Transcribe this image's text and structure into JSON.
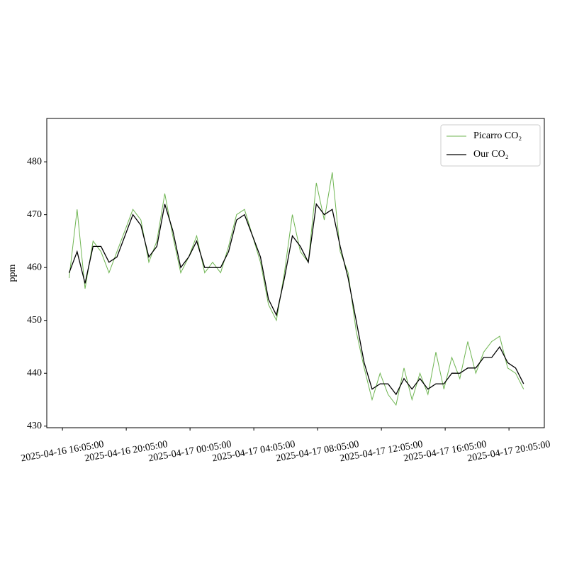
{
  "chart_data": {
    "type": "line",
    "y_label": "ppm",
    "x": [
      "2025-04-16 16:30:00",
      "2025-04-16 17:00:00",
      "2025-04-16 17:30:00",
      "2025-04-16 18:00:00",
      "2025-04-16 18:30:00",
      "2025-04-16 19:00:00",
      "2025-04-16 19:30:00",
      "2025-04-16 20:00:00",
      "2025-04-16 20:30:00",
      "2025-04-16 21:00:00",
      "2025-04-16 21:30:00",
      "2025-04-16 22:00:00",
      "2025-04-16 22:30:00",
      "2025-04-16 23:00:00",
      "2025-04-16 23:30:00",
      "2025-04-17 00:00:00",
      "2025-04-17 00:30:00",
      "2025-04-17 01:00:00",
      "2025-04-17 01:30:00",
      "2025-04-17 02:00:00",
      "2025-04-17 02:30:00",
      "2025-04-17 03:00:00",
      "2025-04-17 03:30:00",
      "2025-04-17 04:00:00",
      "2025-04-17 04:30:00",
      "2025-04-17 05:00:00",
      "2025-04-17 05:30:00",
      "2025-04-17 06:00:00",
      "2025-04-17 06:30:00",
      "2025-04-17 07:00:00",
      "2025-04-17 07:30:00",
      "2025-04-17 08:00:00",
      "2025-04-17 08:30:00",
      "2025-04-17 09:00:00",
      "2025-04-17 09:30:00",
      "2025-04-17 10:00:00",
      "2025-04-17 10:30:00",
      "2025-04-17 11:00:00",
      "2025-04-17 11:30:00",
      "2025-04-17 12:00:00",
      "2025-04-17 12:30:00",
      "2025-04-17 13:00:00",
      "2025-04-17 13:30:00",
      "2025-04-17 14:00:00",
      "2025-04-17 14:30:00",
      "2025-04-17 15:00:00",
      "2025-04-17 15:30:00",
      "2025-04-17 16:00:00",
      "2025-04-17 16:30:00",
      "2025-04-17 17:00:00",
      "2025-04-17 17:30:00",
      "2025-04-17 18:00:00",
      "2025-04-17 18:30:00",
      "2025-04-17 19:00:00",
      "2025-04-17 19:30:00",
      "2025-04-17 20:00:00",
      "2025-04-17 20:30:00",
      "2025-04-17 21:00:00"
    ],
    "series": [
      {
        "name": "Picarro CO₂",
        "color": "#6fb552",
        "values": [
          458,
          471,
          456,
          465,
          463,
          459,
          463,
          467,
          471,
          469,
          461,
          465,
          474,
          466,
          459,
          462,
          466,
          459,
          461,
          459,
          464,
          470,
          471,
          466,
          461,
          453,
          450,
          459,
          470,
          463,
          461,
          476,
          469,
          478,
          463,
          459,
          448,
          441,
          435,
          440,
          436,
          434,
          441,
          435,
          440,
          436,
          444,
          437,
          443,
          439,
          446,
          440,
          444,
          446,
          447,
          441,
          440,
          437
        ]
      },
      {
        "name": "Our CO₂",
        "color": "#000000",
        "values": [
          459,
          463,
          457,
          464,
          464,
          461,
          462,
          466,
          470,
          468,
          462,
          464,
          472,
          467,
          460,
          462,
          465,
          460,
          460,
          460,
          463,
          469,
          470,
          466,
          462,
          454,
          451,
          458,
          466,
          464,
          461,
          472,
          470,
          471,
          464,
          458,
          450,
          442,
          437,
          438,
          438,
          436,
          439,
          437,
          439,
          437,
          438,
          438,
          440,
          440,
          441,
          441,
          443,
          443,
          445,
          442,
          441,
          438
        ]
      }
    ],
    "xlim": [
      "2025-04-16 15:06:00",
      "2025-04-17 22:18:00"
    ],
    "xticks": [
      "2025-04-16 16:05:00",
      "2025-04-16 20:05:00",
      "2025-04-17 00:05:00",
      "2025-04-17 04:05:00",
      "2025-04-17 08:05:00",
      "2025-04-17 12:05:00",
      "2025-04-17 16:05:00",
      "2025-04-17 20:05:00"
    ],
    "ylim": [
      429.7,
      488.2
    ],
    "yticks": [
      430,
      440,
      450,
      460,
      470,
      480
    ],
    "legend": "upper right"
  }
}
